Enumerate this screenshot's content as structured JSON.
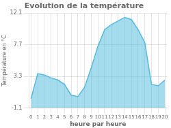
{
  "chart_data": {
    "type": "area",
    "title": "Evolution de la température",
    "xlabel": "heure par heure",
    "ylabel": "Température en °C",
    "x": [
      0,
      1,
      2,
      3,
      4,
      5,
      6,
      7,
      8,
      9,
      10,
      11,
      12,
      13,
      14,
      15,
      16,
      17,
      18,
      19,
      20
    ],
    "values": [
      0.2,
      3.7,
      3.5,
      3.1,
      2.8,
      2.2,
      0.7,
      0.5,
      1.8,
      4.5,
      7.5,
      9.8,
      10.5,
      11.0,
      11.5,
      11.2,
      9.8,
      8.0,
      2.2,
      2.0,
      2.8
    ],
    "color": "#55bbdd",
    "xlim": [
      -0.3,
      20.3
    ],
    "xticks": [
      0,
      1,
      2,
      3,
      4,
      5,
      6,
      7,
      8,
      9,
      10,
      11,
      12,
      13,
      14,
      15,
      16,
      17,
      18,
      19,
      20
    ],
    "ylim": [
      -1.1,
      12.1
    ],
    "yticks": [
      -1.1,
      3.3,
      7.7,
      12.1
    ],
    "grid": true
  }
}
